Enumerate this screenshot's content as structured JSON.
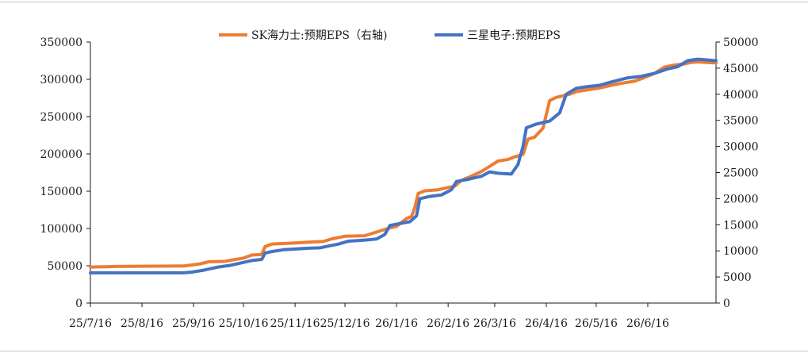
{
  "colors": {
    "sk": "#ED7D31",
    "samsung": "#4472C4",
    "axis": "#1a1a1a",
    "rule": "#b8c4d0"
  },
  "legend": [
    {
      "label": "SK海力士:预期EPS（右轴)",
      "color": "#ED7D31",
      "icon": "orange-line-swatch"
    },
    {
      "label": "三星电子:预期EPS",
      "color": "#4472C4",
      "icon": "blue-line-swatch"
    }
  ],
  "chart_data": {
    "type": "line",
    "title": "",
    "xlabel": "",
    "ylabel": "",
    "grid": false,
    "legend_position": "top-center",
    "x_range": [
      "2025-07-16",
      "2026-07-27"
    ],
    "x_tick_labels": [
      "25/7/16",
      "25/8/16",
      "25/9/16",
      "25/10/16",
      "25/11/16",
      "25/12/16",
      "26/1/16",
      "26/2/16",
      "26/3/16",
      "26/4/16",
      "26/5/16",
      "26/6/16"
    ],
    "x_tick_dates": [
      "2025-07-16",
      "2025-08-16",
      "2025-09-16",
      "2025-10-16",
      "2025-11-16",
      "2025-12-16",
      "2026-01-16",
      "2026-02-16",
      "2026-03-16",
      "2026-04-16",
      "2026-05-16",
      "2026-06-16"
    ],
    "y_left": {
      "ylim": [
        0,
        350000
      ],
      "ticks": [
        0,
        50000,
        100000,
        150000,
        200000,
        250000,
        300000,
        350000
      ],
      "tick_labels": [
        "0",
        "50000",
        "100000",
        "150000",
        "200000",
        "250000",
        "300000",
        "350000"
      ]
    },
    "y_right": {
      "ylim": [
        0,
        50000
      ],
      "ticks": [
        0,
        5000,
        10000,
        15000,
        20000,
        25000,
        30000,
        35000,
        40000,
        45000,
        50000
      ],
      "tick_labels": [
        "0",
        "5000",
        "10000",
        "15000",
        "20000",
        "25000",
        "30000",
        "35000",
        "40000",
        "45000",
        "50000"
      ]
    },
    "series": [
      {
        "name": "SK海力士:预期EPS（右轴)",
        "axis": "right",
        "color": "#ED7D31",
        "points": [
          [
            "2025-07-16",
            6900
          ],
          [
            "2025-08-01",
            7000
          ],
          [
            "2025-08-16",
            7050
          ],
          [
            "2025-09-10",
            7100
          ],
          [
            "2025-09-20",
            7500
          ],
          [
            "2025-09-25",
            7900
          ],
          [
            "2025-10-05",
            8000
          ],
          [
            "2025-10-10",
            8300
          ],
          [
            "2025-10-16",
            8600
          ],
          [
            "2025-10-21",
            9200
          ],
          [
            "2025-10-27",
            9300
          ],
          [
            "2025-10-29",
            10800
          ],
          [
            "2025-11-02",
            11300
          ],
          [
            "2025-11-16",
            11500
          ],
          [
            "2025-11-26",
            11700
          ],
          [
            "2025-12-03",
            11800
          ],
          [
            "2025-12-08",
            12300
          ],
          [
            "2025-12-16",
            12800
          ],
          [
            "2025-12-28",
            12900
          ],
          [
            "2026-01-04",
            13600
          ],
          [
            "2026-01-11",
            14300
          ],
          [
            "2026-01-16",
            14700
          ],
          [
            "2026-01-22",
            16200
          ],
          [
            "2026-01-25",
            16600
          ],
          [
            "2026-01-27",
            18300
          ],
          [
            "2026-01-29",
            21000
          ],
          [
            "2026-02-02",
            21500
          ],
          [
            "2026-02-10",
            21700
          ],
          [
            "2026-02-14",
            22000
          ],
          [
            "2026-02-20",
            22400
          ],
          [
            "2026-02-24",
            23500
          ],
          [
            "2026-03-02",
            24300
          ],
          [
            "2026-03-08",
            25200
          ],
          [
            "2026-03-14",
            26400
          ],
          [
            "2026-03-18",
            27200
          ],
          [
            "2026-03-24",
            27500
          ],
          [
            "2026-03-28",
            28000
          ],
          [
            "2026-04-02",
            28500
          ],
          [
            "2026-04-05",
            31400
          ],
          [
            "2026-04-09",
            31800
          ],
          [
            "2026-04-14",
            33500
          ],
          [
            "2026-04-18",
            38800
          ],
          [
            "2026-04-22",
            39400
          ],
          [
            "2026-04-26",
            39700
          ],
          [
            "2026-04-30",
            40000
          ],
          [
            "2026-05-04",
            40500
          ],
          [
            "2026-05-10",
            40800
          ],
          [
            "2026-05-18",
            41200
          ],
          [
            "2026-05-26",
            41800
          ],
          [
            "2026-06-02",
            42200
          ],
          [
            "2026-06-08",
            42500
          ],
          [
            "2026-06-14",
            43200
          ],
          [
            "2026-06-20",
            44000
          ],
          [
            "2026-06-26",
            45200
          ],
          [
            "2026-07-02",
            45600
          ],
          [
            "2026-07-08",
            45800
          ],
          [
            "2026-07-12",
            46100
          ],
          [
            "2026-07-16",
            46200
          ],
          [
            "2026-07-21",
            46100
          ],
          [
            "2026-07-27",
            46000
          ]
        ]
      },
      {
        "name": "三星电子:预期EPS",
        "axis": "left",
        "color": "#4472C4",
        "points": [
          [
            "2025-07-16",
            40500
          ],
          [
            "2025-08-16",
            40500
          ],
          [
            "2025-09-10",
            40500
          ],
          [
            "2025-09-15",
            41500
          ],
          [
            "2025-09-22",
            44000
          ],
          [
            "2025-09-30",
            48000
          ],
          [
            "2025-10-08",
            50500
          ],
          [
            "2025-10-14",
            53500
          ],
          [
            "2025-10-21",
            57000
          ],
          [
            "2025-10-27",
            58500
          ],
          [
            "2025-10-29",
            67000
          ],
          [
            "2025-11-02",
            69000
          ],
          [
            "2025-11-09",
            71500
          ],
          [
            "2025-11-16",
            72500
          ],
          [
            "2025-11-24",
            73500
          ],
          [
            "2025-12-01",
            74000
          ],
          [
            "2025-12-05",
            76000
          ],
          [
            "2025-12-12",
            79000
          ],
          [
            "2025-12-18",
            83000
          ],
          [
            "2025-12-28",
            84500
          ],
          [
            "2026-01-04",
            86000
          ],
          [
            "2026-01-09",
            92000
          ],
          [
            "2026-01-12",
            104000
          ],
          [
            "2026-01-19",
            107000
          ],
          [
            "2026-01-24",
            109000
          ],
          [
            "2026-01-28",
            117000
          ],
          [
            "2026-01-30",
            140000
          ],
          [
            "2026-02-05",
            143000
          ],
          [
            "2026-02-12",
            145000
          ],
          [
            "2026-02-18",
            152000
          ],
          [
            "2026-02-21",
            163000
          ],
          [
            "2026-02-28",
            166000
          ],
          [
            "2026-03-08",
            170000
          ],
          [
            "2026-03-13",
            176000
          ],
          [
            "2026-03-18",
            174000
          ],
          [
            "2026-03-26",
            173000
          ],
          [
            "2026-03-30",
            186000
          ],
          [
            "2026-04-02",
            210000
          ],
          [
            "2026-04-04",
            235000
          ],
          [
            "2026-04-10",
            240000
          ],
          [
            "2026-04-14",
            242000
          ],
          [
            "2026-04-18",
            244000
          ],
          [
            "2026-04-24",
            255000
          ],
          [
            "2026-04-28",
            280000
          ],
          [
            "2026-05-04",
            288000
          ],
          [
            "2026-05-10",
            290000
          ],
          [
            "2026-05-18",
            292000
          ],
          [
            "2026-05-26",
            297000
          ],
          [
            "2026-06-04",
            302000
          ],
          [
            "2026-06-12",
            304000
          ],
          [
            "2026-06-20",
            308000
          ],
          [
            "2026-06-28",
            314000
          ],
          [
            "2026-07-04",
            317000
          ],
          [
            "2026-07-10",
            325000
          ],
          [
            "2026-07-16",
            327000
          ],
          [
            "2026-07-22",
            326000
          ],
          [
            "2026-07-27",
            325000
          ]
        ]
      }
    ]
  }
}
